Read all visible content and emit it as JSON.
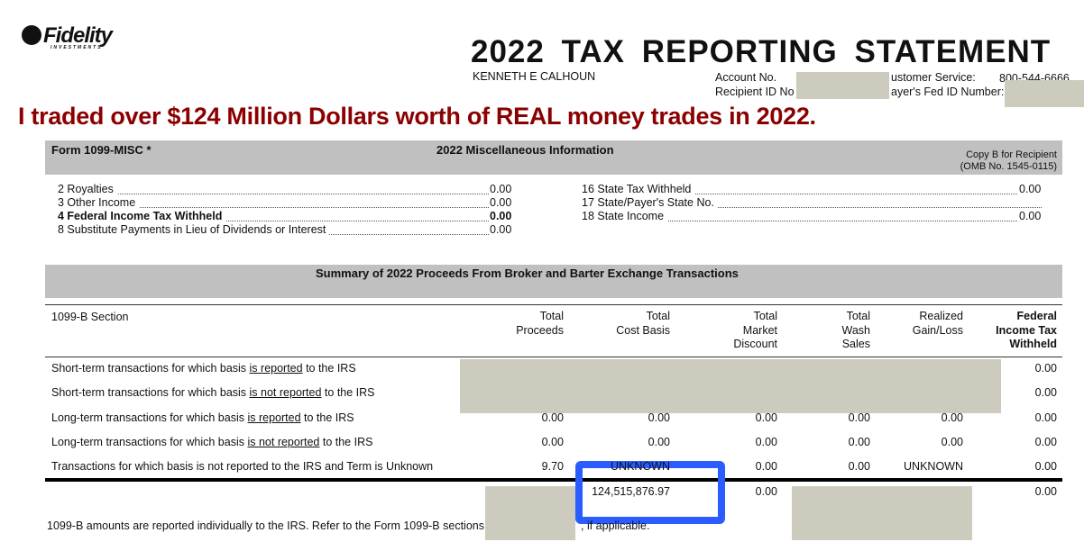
{
  "header": {
    "logo": "Fidelity INVESTMENTS",
    "title": "2022 TAX REPORTING STATEMENT",
    "recipient_name": "KENNETH E CALHOUN",
    "account_label": "Account No.",
    "recipient_id_label": "Recipient ID No",
    "customer_service_label": "ustomer Service:",
    "customer_service_phone": "800-544-6666",
    "payer_fed_id_label": "ayer's Fed ID Number:"
  },
  "banner": "I traded over $124 Million Dollars worth of REAL money trades in 2022.",
  "misc": {
    "form": "Form 1099-MISC *",
    "heading": "2022 Miscellaneous Information",
    "copy": "Copy B for Recipient",
    "omb": "(OMB No. 1545-0115)",
    "left_items": [
      {
        "label": "2  Royalties",
        "value": "0.00",
        "bold": false
      },
      {
        "label": "3  Other Income",
        "value": "0.00",
        "bold": false
      },
      {
        "label": "4  Federal Income Tax Withheld",
        "value": "0.00",
        "bold": true
      },
      {
        "label": "8  Substitute Payments in Lieu of Dividends or Interest",
        "value": "0.00",
        "bold": false
      }
    ],
    "right_items": [
      {
        "label": "16 State Tax Withheld",
        "value": "0.00"
      },
      {
        "label": "17 State/Payer's State No.",
        "value": ""
      },
      {
        "label": "18 State Income",
        "value": "0.00"
      }
    ]
  },
  "summary": {
    "heading": "Summary of 2022 Proceeds From Broker and Barter Exchange Transactions",
    "section_header": "1099-B Section",
    "columns": [
      "Total\nProceeds",
      "Total\nCost Basis",
      "Total\nMarket\nDiscount",
      "Total\nWash\nSales",
      "Realized\nGain/Loss",
      "Federal\nIncome Tax\nWithheld"
    ],
    "rows": [
      {
        "pre": "Short-term transactions for which basis ",
        "u": "is reported",
        "post": " to the IRS",
        "values": [
          "",
          "",
          "",
          "",
          "",
          "0.00"
        ]
      },
      {
        "pre": "Short-term transactions for which basis ",
        "u": "is not reported",
        "post": " to the IRS",
        "values": [
          "",
          "",
          "",
          "",
          "",
          "0.00"
        ]
      },
      {
        "pre": "Long-term transactions for which basis ",
        "u": "is reported",
        "post": " to the IRS",
        "values": [
          "0.00",
          "0.00",
          "0.00",
          "0.00",
          "0.00",
          "0.00"
        ]
      },
      {
        "pre": "Long-term transactions for which basis ",
        "u": "is not reported",
        "post": " to the IRS",
        "values": [
          "0.00",
          "0.00",
          "0.00",
          "0.00",
          "0.00",
          "0.00"
        ]
      },
      {
        "pre": "Transactions for which basis is not reported to the IRS and Term is Unknown",
        "u": "",
        "post": "",
        "values": [
          "9.70",
          "UNKNOWN",
          "0.00",
          "0.00",
          "UNKNOWN",
          "0.00"
        ]
      }
    ],
    "totals": [
      "",
      "124,515,876.97",
      "0.00",
      "",
      "",
      "0.00"
    ],
    "footnote_pre": "1099-B amounts are reported individually to the IRS. Refer to the Form 1099-B sections",
    "footnote_post": ", if applicable."
  },
  "colors": {
    "banner": "#8b0000",
    "highlight": "#2a5cff",
    "redaction": "#cccbbd",
    "bar": "#c0c0c0"
  }
}
